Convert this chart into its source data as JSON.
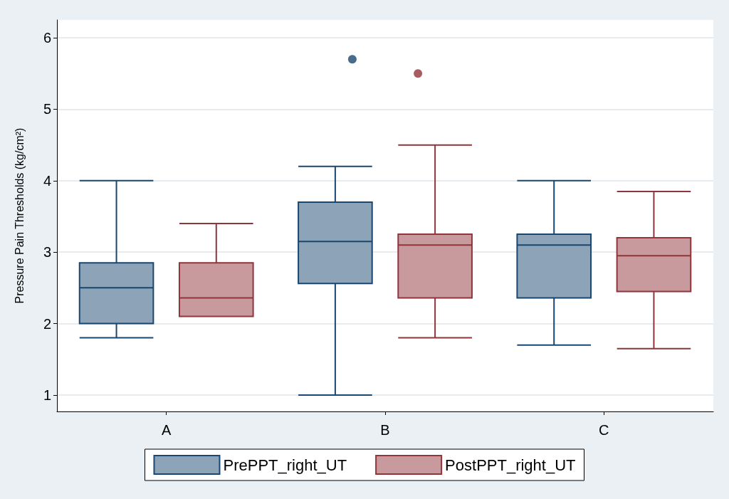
{
  "chart_data": {
    "type": "box",
    "ylabel": "Pressure Pain Thresholds (kg/cm²)",
    "categories": [
      "A",
      "B",
      "C"
    ],
    "ylim": [
      0.77,
      6.25
    ],
    "yticks": [
      1,
      2,
      3,
      4,
      5,
      6
    ],
    "grid": "y",
    "legend": "bottom",
    "series": [
      {
        "name": "PrePPT_right_UT",
        "color": "#1a476f",
        "boxes": [
          {
            "low": 1.8,
            "q1": 2.0,
            "median": 2.5,
            "q3": 2.85,
            "high": 4.0
          },
          {
            "low": 1.0,
            "q1": 2.56,
            "median": 3.15,
            "q3": 3.7,
            "high": 4.2,
            "outliers": [
              5.7
            ]
          },
          {
            "low": 1.7,
            "q1": 2.36,
            "median": 3.1,
            "q3": 3.25,
            "high": 4.0
          }
        ]
      },
      {
        "name": "PostPPT_right_UT",
        "color": "#90353b",
        "boxes": [
          {
            "low": 2.1,
            "q1": 2.1,
            "median": 2.36,
            "q3": 2.85,
            "high": 3.4
          },
          {
            "low": 1.8,
            "q1": 2.36,
            "median": 3.1,
            "q3": 3.25,
            "high": 4.5,
            "outliers": [
              5.5
            ]
          },
          {
            "low": 1.65,
            "q1": 2.45,
            "median": 2.95,
            "q3": 3.2,
            "high": 3.85
          }
        ]
      }
    ]
  }
}
